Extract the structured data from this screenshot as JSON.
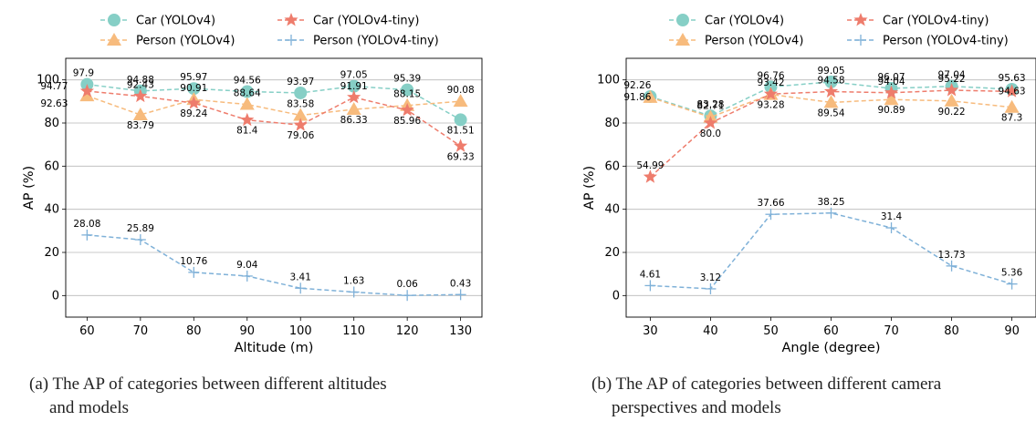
{
  "colors": {
    "car_yolov4": "#86cfc6",
    "person_yolov4": "#f7bb7d",
    "car_yolov4_tiny": "#ee7c6c",
    "person_yolov4_tiny": "#7fb1d8"
  },
  "chart_data": [
    {
      "type": "line",
      "xlabel": "Altitude (m)",
      "ylabel": "AP (%)",
      "x": [
        60,
        70,
        80,
        90,
        100,
        110,
        120,
        130
      ],
      "xlim": [
        56,
        134
      ],
      "ylim": [
        -10,
        110
      ],
      "yticks": [
        0,
        20,
        40,
        60,
        80,
        100
      ],
      "grid": "horizontal",
      "legend": "top",
      "caption_line1": "(a) The AP of categories between different altitudes",
      "caption_line2": "and models",
      "series": [
        {
          "name": "Car (YOLOv4)",
          "marker": "circle",
          "color": "#86cfc6",
          "values": [
            97.9,
            94.88,
            95.97,
            94.56,
            93.97,
            97.05,
            95.39,
            81.51
          ],
          "labels": [
            "97.9",
            "94.88",
            "95.97",
            "94.56",
            "93.97",
            "97.05",
            "95.39",
            "81.51"
          ]
        },
        {
          "name": "Person (YOLOv4)",
          "marker": "triangle",
          "color": "#f7bb7d",
          "values": [
            92.63,
            83.79,
            90.91,
            88.64,
            83.58,
            86.33,
            88.15,
            90.08
          ],
          "labels": [
            "92.63",
            "83.79",
            "90.91",
            "88.64",
            "83.58",
            "86.33",
            "88.15",
            "90.08"
          ]
        },
        {
          "name": "Car (YOLOv4-tiny)",
          "marker": "star",
          "color": "#ee7c6c",
          "values": [
            94.77,
            92.43,
            89.24,
            81.4,
            79.06,
            91.91,
            85.96,
            69.33
          ],
          "labels": [
            "94.77",
            "92.43",
            "89.24",
            "81.4",
            "79.06",
            "91.91",
            "85.96",
            "69.33"
          ]
        },
        {
          "name": "Person (YOLOv4-tiny)",
          "marker": "plus",
          "color": "#7fb1d8",
          "values": [
            28.08,
            25.89,
            10.76,
            9.04,
            3.41,
            1.63,
            0.06,
            0.43
          ],
          "labels": [
            "28.08",
            "25.89",
            "10.76",
            "9.04",
            "3.41",
            "1.63",
            "0.06",
            "0.43"
          ]
        }
      ]
    },
    {
      "type": "line",
      "xlabel": "Angle (degree)",
      "ylabel": "AP (%)",
      "x": [
        30,
        40,
        50,
        60,
        70,
        80,
        90
      ],
      "xlim": [
        26,
        94
      ],
      "ylim": [
        -10,
        110
      ],
      "yticks": [
        0,
        20,
        40,
        60,
        80,
        100
      ],
      "grid": "horizontal",
      "legend": "top",
      "caption_line1": "(b) The AP of categories between different camera",
      "caption_line2": "perspectives and models",
      "series": [
        {
          "name": "Car (YOLOv4)",
          "marker": "circle",
          "color": "#86cfc6",
          "values": [
            92.26,
            83.28,
            96.76,
            99.05,
            96.07,
            97.04,
            95.63
          ],
          "labels": [
            "92.26",
            "83.28",
            "96.76",
            "99.05",
            "96.07",
            "97.04",
            "95.63"
          ]
        },
        {
          "name": "Person (YOLOv4)",
          "marker": "triangle",
          "color": "#f7bb7d",
          "values": [
            91.86,
            82.71,
            93.28,
            89.54,
            90.89,
            90.22,
            87.3
          ],
          "labels": [
            "91.86",
            "82.71",
            "93.28",
            "89.54",
            "90.89",
            "90.22",
            "87.3"
          ]
        },
        {
          "name": "Car (YOLOv4-tiny)",
          "marker": "star",
          "color": "#ee7c6c",
          "values": [
            54.99,
            80.0,
            93.42,
            94.58,
            94.04,
            95.22,
            94.63
          ],
          "labels": [
            "54.99",
            "80.0",
            "93.42",
            "94.58",
            "94.04",
            "95.22",
            "94.63"
          ]
        },
        {
          "name": "Person (YOLOv4-tiny)",
          "marker": "plus",
          "color": "#7fb1d8",
          "values": [
            4.61,
            3.12,
            37.66,
            38.25,
            31.4,
            13.73,
            5.36
          ],
          "labels": [
            "4.61",
            "3.12",
            "37.66",
            "38.25",
            "31.4",
            "13.73",
            "5.36"
          ]
        }
      ]
    }
  ]
}
